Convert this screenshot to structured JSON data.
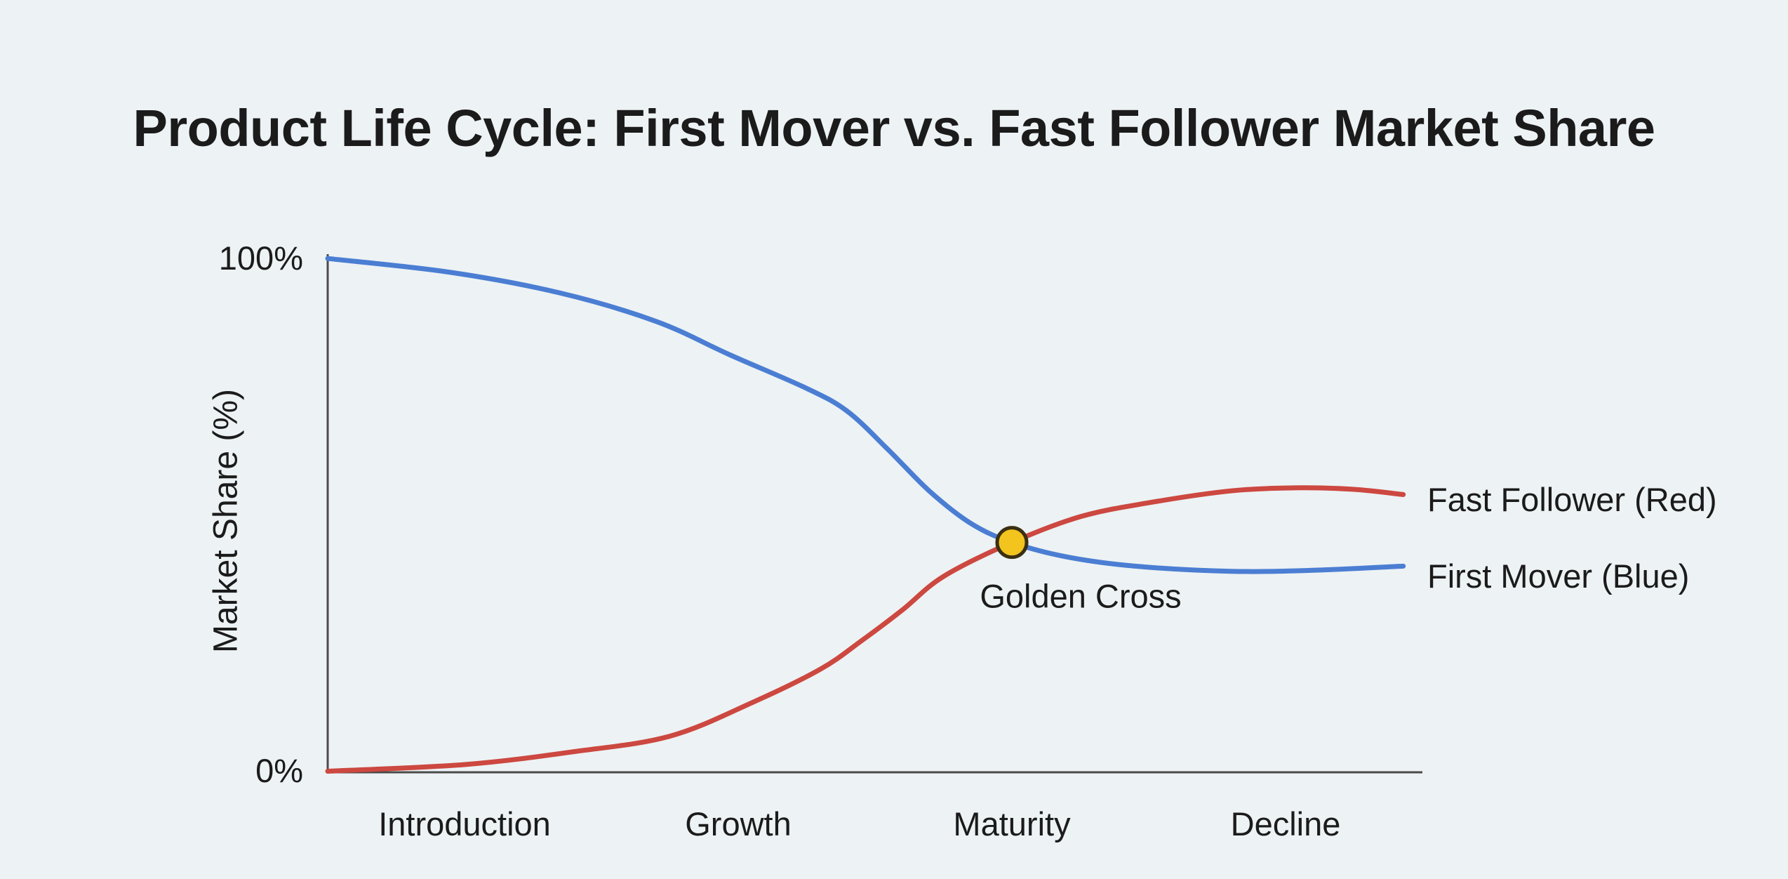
{
  "chart_data": {
    "type": "line",
    "title": "Product Life Cycle: First Mover vs. Fast Follower Market Share",
    "xlabel": "",
    "ylabel": "Market Share (%)",
    "yticks": [
      "100%",
      "0%"
    ],
    "ylim": [
      0,
      100
    ],
    "x_range_phases": [
      0,
      4
    ],
    "grid": false,
    "legend_position": "right-of-line-ends",
    "background": "#edf2f4",
    "axis_color": "#4a4a4a",
    "text_color": "#1b1b1b",
    "categories": [
      "Introduction",
      "Growth",
      "Maturity",
      "Decline"
    ],
    "series": [
      {
        "name": "First Mover",
        "end_label": "First Mover (Blue)",
        "color": "#4b7ed3",
        "points": [
          [
            0.0,
            99.7
          ],
          [
            0.45,
            97.0
          ],
          [
            0.85,
            93.0
          ],
          [
            1.2,
            87.5
          ],
          [
            1.47,
            81.0
          ],
          [
            1.75,
            74.5
          ],
          [
            1.9,
            70.0
          ],
          [
            2.05,
            62.5
          ],
          [
            2.2,
            54.5
          ],
          [
            2.35,
            48.3
          ],
          [
            2.5,
            44.6
          ],
          [
            2.7,
            41.8
          ],
          [
            2.95,
            40.0
          ],
          [
            3.3,
            39.0
          ],
          [
            3.6,
            39.2
          ],
          [
            3.93,
            40.0
          ]
        ]
      },
      {
        "name": "Fast Follower",
        "end_label": "Fast Follower (Red)",
        "color": "#cc4840",
        "points": [
          [
            0.0,
            0.2
          ],
          [
            0.5,
            1.5
          ],
          [
            0.9,
            4.0
          ],
          [
            1.25,
            7.0
          ],
          [
            1.55,
            13.5
          ],
          [
            1.8,
            20.0
          ],
          [
            1.95,
            25.5
          ],
          [
            2.1,
            31.5
          ],
          [
            2.25,
            38.0
          ],
          [
            2.5,
            44.6
          ],
          [
            2.75,
            49.6
          ],
          [
            3.0,
            52.3
          ],
          [
            3.3,
            54.6
          ],
          [
            3.55,
            55.2
          ],
          [
            3.75,
            54.9
          ],
          [
            3.93,
            53.9
          ]
        ]
      }
    ],
    "annotation": {
      "text": "Golden Cross",
      "point": {
        "x": 2.5,
        "y": 44.6
      },
      "marker_fill": "#f2c41d",
      "marker_stroke": "#3a2f12"
    }
  }
}
